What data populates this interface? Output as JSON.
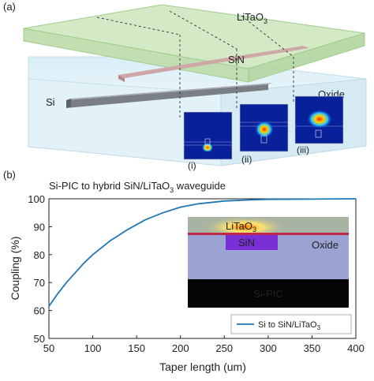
{
  "panel_a": {
    "label": "(a)",
    "layers": {
      "top": "LiTaO",
      "top_sub": "3",
      "middle": "SiN",
      "waveguide": "Si",
      "substrate": "Oxide"
    },
    "mode_insets": [
      "(i)",
      "(ii)",
      "(iii)"
    ]
  },
  "panel_b": {
    "label": "(b)",
    "title_prefix": "Si-PIC to hybrid SiN/LiTaO",
    "title_sub": "3",
    "title_suffix": " waveguide",
    "inset": {
      "litao": "LiTaO",
      "litao_sub": "3",
      "sin": "SiN",
      "oxide": "Oxide",
      "sipic": "Si-PIC"
    }
  },
  "chart_data": {
    "type": "line",
    "xlabel": "Taper length (um)",
    "ylabel": "Coupling (%)",
    "xlim": [
      50,
      400
    ],
    "ylim": [
      50,
      100
    ],
    "x_ticks": [
      50,
      100,
      150,
      200,
      250,
      300,
      350,
      400
    ],
    "y_ticks": [
      50,
      60,
      70,
      80,
      90,
      100
    ],
    "legend_position": "bottom-right",
    "series": [
      {
        "name": "Si to SiN/LiTaO",
        "name_sub": "3",
        "color": "#1f77b4",
        "x": [
          50,
          60,
          70,
          80,
          90,
          100,
          120,
          140,
          160,
          180,
          200,
          220,
          250,
          280,
          300,
          350,
          400
        ],
        "y": [
          61.5,
          66,
          70,
          73.5,
          77,
          80,
          85,
          89,
          92.5,
          95,
          97,
          98.2,
          99.2,
          99.6,
          99.8,
          99.9,
          100
        ]
      }
    ]
  }
}
